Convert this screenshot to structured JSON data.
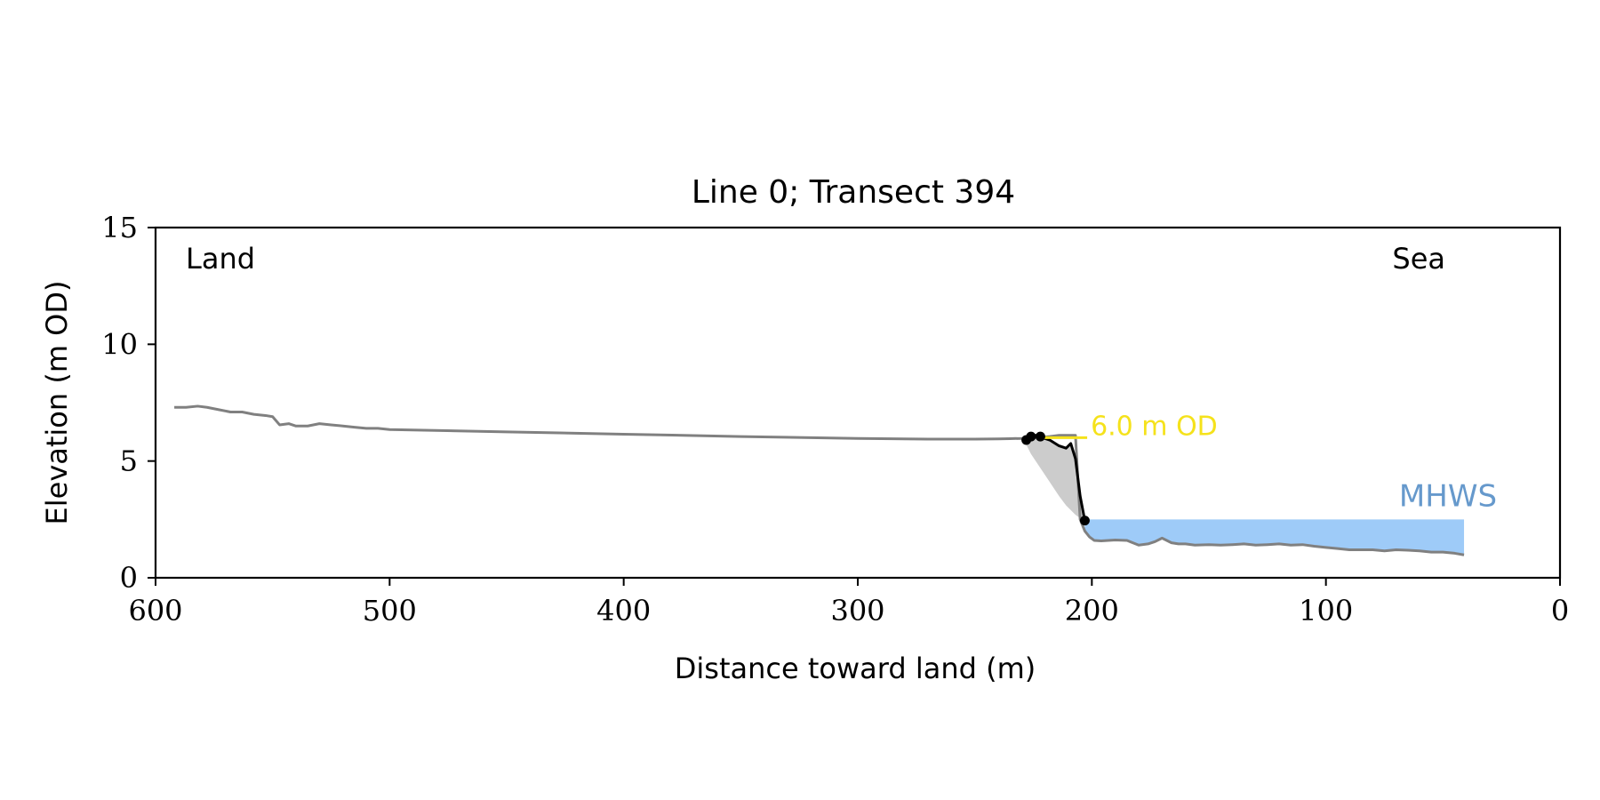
{
  "chart_data": {
    "type": "line",
    "title": "Line 0; Transect 394",
    "xlabel": "Distance toward land (m)",
    "ylabel": "Elevation (m OD)",
    "xlim": [
      600,
      0
    ],
    "ylim": [
      0,
      15
    ],
    "x_ticks": [
      600,
      500,
      400,
      300,
      200,
      100,
      0
    ],
    "y_ticks": [
      0,
      5,
      10,
      15
    ],
    "grid": false,
    "annotations": {
      "land_label": "Land",
      "sea_label": "Sea",
      "level_label": "6.0 m OD",
      "mhws_label": "MHWS"
    },
    "colors": {
      "profile": "#808080",
      "cliff_line": "#000000",
      "fill": "#cccccc",
      "mhws_fill": "#9ecbf8",
      "mhws_text": "#6699cc",
      "level_line": "#f5e21b",
      "level_text": "#f5e21b"
    },
    "profile": {
      "x": [
        592,
        587,
        582,
        578,
        573,
        568,
        563,
        558,
        553,
        550,
        547,
        543,
        540,
        535,
        530,
        525,
        520,
        515,
        510,
        505,
        500,
        450,
        400,
        350,
        300,
        270,
        250,
        240,
        235,
        230,
        226,
        223,
        218,
        214,
        210,
        207,
        205,
        203,
        201,
        199,
        196,
        193,
        190,
        185,
        180,
        176,
        173,
        170,
        166,
        163,
        160,
        156,
        150,
        145,
        140,
        135,
        130,
        125,
        120,
        115,
        110,
        105,
        100,
        95,
        90,
        85,
        80,
        75,
        70,
        65,
        60,
        55,
        50,
        45,
        41
      ],
      "y": [
        7.3,
        7.3,
        7.35,
        7.3,
        7.2,
        7.1,
        7.1,
        7.0,
        6.95,
        6.9,
        6.55,
        6.6,
        6.5,
        6.5,
        6.6,
        6.55,
        6.5,
        6.45,
        6.4,
        6.4,
        6.35,
        6.25,
        6.15,
        6.05,
        5.97,
        5.94,
        5.94,
        5.95,
        5.96,
        5.97,
        6.0,
        6.0,
        6.05,
        6.1,
        6.1,
        6.1,
        2.5,
        2.0,
        1.75,
        1.6,
        1.58,
        1.6,
        1.62,
        1.6,
        1.4,
        1.45,
        1.55,
        1.7,
        1.5,
        1.45,
        1.45,
        1.4,
        1.42,
        1.4,
        1.42,
        1.45,
        1.4,
        1.42,
        1.45,
        1.4,
        1.42,
        1.35,
        1.3,
        1.25,
        1.2,
        1.2,
        1.2,
        1.15,
        1.2,
        1.18,
        1.15,
        1.1,
        1.1,
        1.05,
        0.98
      ]
    },
    "cliff_line": {
      "x": [
        228,
        227,
        226,
        225,
        224,
        223,
        222,
        221,
        218,
        214,
        211,
        209,
        207,
        205,
        203
      ],
      "y": [
        5.9,
        6.0,
        6.1,
        6.05,
        6.1,
        6.1,
        6.05,
        6.0,
        5.9,
        5.65,
        5.55,
        5.75,
        5.1,
        3.5,
        2.45
      ]
    },
    "cliff_fill": {
      "x": [
        229,
        226,
        222,
        218,
        214,
        211,
        209,
        207,
        205,
        203
      ],
      "y_top": [
        5.9,
        6.05,
        6.05,
        5.9,
        5.65,
        5.55,
        5.75,
        5.1,
        3.5,
        2.45
      ],
      "y_bottom": [
        5.9,
        5.3,
        4.7,
        4.1,
        3.5,
        3.1,
        2.9,
        2.7,
        2.55,
        2.45
      ]
    },
    "markers": [
      {
        "x": 228,
        "y": 5.9
      },
      {
        "x": 226,
        "y": 6.05
      },
      {
        "x": 222,
        "y": 6.05
      },
      {
        "x": 203,
        "y": 2.45
      }
    ],
    "level_line": {
      "x": [
        222,
        202
      ],
      "y": 6.0
    },
    "mhws": {
      "level": 2.5,
      "x_start": 203,
      "x_end": 41
    }
  }
}
